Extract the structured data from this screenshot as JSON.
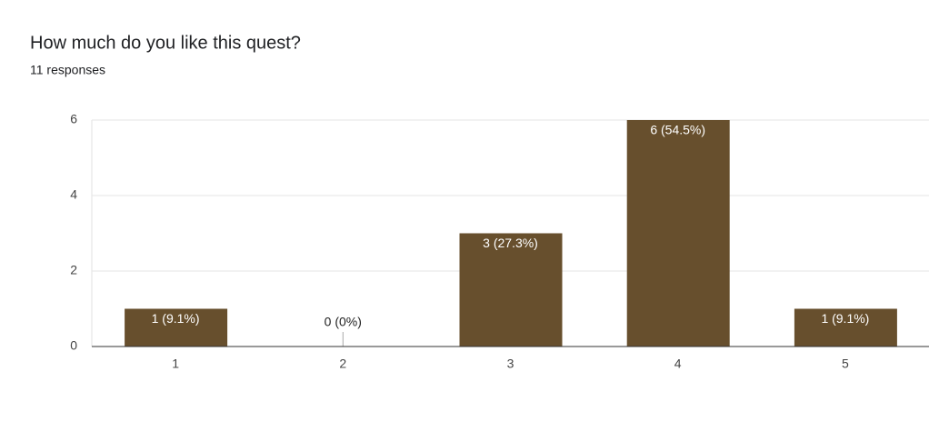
{
  "chart_data": {
    "type": "bar",
    "title": "How much do you like this quest?",
    "subtitle": "11 responses",
    "categories": [
      "1",
      "2",
      "3",
      "4",
      "5"
    ],
    "values": [
      1,
      0,
      3,
      6,
      1
    ],
    "value_labels": [
      "1 (9.1%)",
      "0 (0%)",
      "3 (27.3%)",
      "6 (54.5%)",
      "1 (9.1%)"
    ],
    "color": "#674f2d",
    "ylim": [
      0,
      6
    ],
    "yticks": [
      0,
      2,
      4,
      6
    ],
    "grid": true
  }
}
